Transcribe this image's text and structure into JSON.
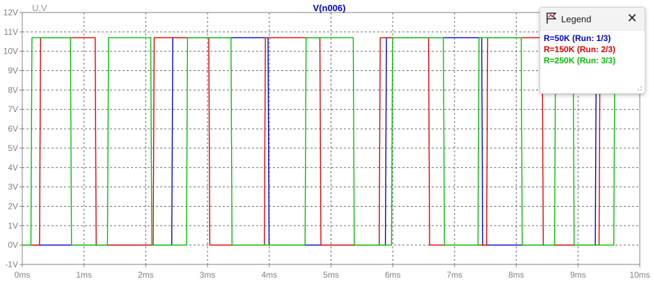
{
  "chart_data": {
    "type": "line",
    "title": "V(n006)",
    "ylabel": "U,V",
    "xlabel": "",
    "xlim": [
      0,
      10
    ],
    "ylim": [
      -1,
      12
    ],
    "grid": true,
    "x_ticks": [
      "0ms",
      "1ms",
      "2ms",
      "3ms",
      "4ms",
      "5ms",
      "6ms",
      "7ms",
      "8ms",
      "9ms",
      "10ms"
    ],
    "y_ticks": [
      "-1V",
      "0V",
      "1V",
      "2V",
      "3V",
      "4V",
      "5V",
      "6V",
      "7V",
      "8V",
      "9V",
      "10V",
      "11V",
      "12V"
    ],
    "series": [
      {
        "name": "R=50K  (Run: 1/3)",
        "color": "#0000cc",
        "high_v": 10.7,
        "low_v": 0.0,
        "edges": [
          {
            "t": 2.42,
            "v": 10.7
          },
          {
            "t": 3.98,
            "v": 0.0
          },
          {
            "t": 5.88,
            "v": 10.7
          },
          {
            "t": 7.44,
            "v": 0.0
          },
          {
            "t": 9.28,
            "v": 10.7
          }
        ]
      },
      {
        "name": "R=150K  (Run: 2/3)",
        "color": "#e00000",
        "high_v": 10.7,
        "low_v": 0.0,
        "edges": [
          {
            "t": 0.28,
            "v": 10.7
          },
          {
            "t": 1.18,
            "v": 0.0
          },
          {
            "t": 2.12,
            "v": 10.7
          },
          {
            "t": 3.02,
            "v": 0.0
          },
          {
            "t": 3.92,
            "v": 10.7
          },
          {
            "t": 4.82,
            "v": 0.0
          },
          {
            "t": 5.78,
            "v": 10.7
          },
          {
            "t": 6.58,
            "v": 0.0
          },
          {
            "t": 7.52,
            "v": 10.7
          },
          {
            "t": 8.42,
            "v": 0.0
          },
          {
            "t": 9.34,
            "v": 10.7
          }
        ]
      },
      {
        "name": "R=250K  (Run: 3/3)",
        "color": "#00c000",
        "high_v": 10.7,
        "low_v": 0.0,
        "edges": [
          {
            "t": 0.14,
            "v": 10.7
          },
          {
            "t": 0.78,
            "v": 0.0
          },
          {
            "t": 1.38,
            "v": 10.7
          },
          {
            "t": 2.08,
            "v": 0.0
          },
          {
            "t": 2.66,
            "v": 10.7
          },
          {
            "t": 3.38,
            "v": 0.0
          },
          {
            "t": 4.58,
            "v": 10.7
          },
          {
            "t": 5.36,
            "v": 0.0
          },
          {
            "t": 5.98,
            "v": 10.7
          },
          {
            "t": 6.82,
            "v": 0.0
          },
          {
            "t": 7.38,
            "v": 10.7
          },
          {
            "t": 8.08,
            "v": 0.0
          },
          {
            "t": 8.62,
            "v": 10.7
          },
          {
            "t": 8.92,
            "v": 0.0
          },
          {
            "t": 9.58,
            "v": 10.7
          }
        ]
      }
    ]
  },
  "legend": {
    "title": "Legend",
    "close_glyph": "✕",
    "icon": "legend-window-icon",
    "entries": [
      {
        "label": "R=50K  (Run: 1/3)",
        "color": "#0000cc"
      },
      {
        "label": "R=150K  (Run: 2/3)",
        "color": "#e00000"
      },
      {
        "label": "R=250K  (Run: 3/3)",
        "color": "#00c000"
      }
    ]
  }
}
